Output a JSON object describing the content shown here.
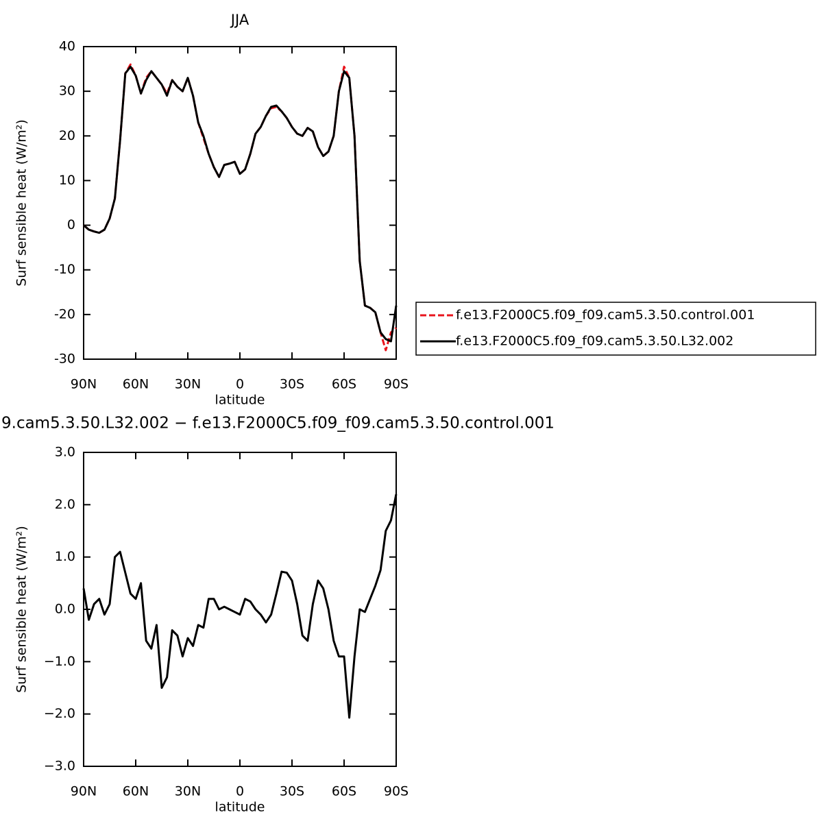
{
  "chart_data": [
    {
      "type": "line",
      "title": "JJA",
      "xlabel": "latitude",
      "ylabel": "Surf sensible heat (W/m²)",
      "x": [
        90,
        87,
        84,
        81,
        78,
        75,
        72,
        69,
        66,
        63,
        60,
        57,
        54,
        51,
        48,
        45,
        42,
        39,
        36,
        33,
        30,
        27,
        24,
        21,
        18,
        15,
        12,
        9,
        6,
        3,
        0,
        -3,
        -6,
        -9,
        -12,
        -15,
        -18,
        -21,
        -24,
        -27,
        -30,
        -33,
        -36,
        -39,
        -42,
        -45,
        -48,
        -51,
        -54,
        -57,
        -60,
        -63,
        -66,
        -69,
        -72,
        -75,
        -78,
        -81,
        -84,
        -87,
        -90
      ],
      "series": [
        {
          "name": "f.e13.F2000C5.f09_f09.cam5.3.50.control.001",
          "color": "#e8141c",
          "dash": true,
          "values": [
            0,
            -1,
            -1.4,
            -1.7,
            -1,
            1.5,
            6,
            19,
            34,
            36,
            33.5,
            29.5,
            33,
            34.5,
            33,
            31.5,
            29.5,
            32.5,
            31,
            30,
            33,
            29,
            23,
            19.5,
            16,
            13,
            10.8,
            13.5,
            13.8,
            14.2,
            11.5,
            12.5,
            16,
            20.5,
            22,
            24.5,
            26.2,
            26.5,
            25.5,
            24,
            22,
            20.5,
            20,
            21.8,
            21,
            17.5,
            15.5,
            16.5,
            20,
            30,
            35.5,
            33,
            20,
            -8,
            -18,
            -18.5,
            -19.5,
            -24,
            -28,
            -24,
            -23
          ]
        },
        {
          "name": "f.e13.F2000C5.f09_f09.cam5.3.50.L32.002",
          "color": "#000000",
          "dash": false,
          "values": [
            0,
            -1,
            -1.4,
            -1.7,
            -1,
            1.5,
            6,
            19,
            34,
            35.5,
            33.5,
            29.5,
            32.5,
            34.5,
            33,
            31.5,
            29,
            32.5,
            31,
            30,
            33,
            29,
            23,
            20,
            16,
            13,
            10.8,
            13.5,
            13.8,
            14.2,
            11.5,
            12.5,
            16,
            20.5,
            22,
            24.5,
            26.5,
            26.8,
            25.5,
            24,
            22,
            20.5,
            20,
            21.8,
            21,
            17.5,
            15.5,
            16.5,
            20,
            30,
            34.5,
            33,
            20,
            -8,
            -18,
            -18.5,
            -19.5,
            -24,
            -25.5,
            -26,
            -18
          ]
        }
      ],
      "xlim": [
        90,
        -90
      ],
      "xticks": [
        {
          "value": 90,
          "label": "90N"
        },
        {
          "value": 60,
          "label": "60N"
        },
        {
          "value": 30,
          "label": "30N"
        },
        0,
        {
          "value": -30,
          "label": "30S"
        },
        {
          "value": -60,
          "label": "60S"
        },
        {
          "value": -90,
          "label": "90S"
        }
      ],
      "ylim": [
        -30,
        40
      ],
      "yticks": [
        -30,
        -20,
        -10,
        0,
        10,
        20,
        30,
        40
      ],
      "legend": "right"
    },
    {
      "type": "line",
      "title": "9.cam5.3.50.L32.002 − f.e13.F2000C5.f09_f09.cam5.3.50.control.001",
      "xlabel": "latitude",
      "ylabel": "Surf sensible heat (W/m²)",
      "x": [
        90,
        87,
        84,
        81,
        78,
        75,
        72,
        69,
        66,
        63,
        60,
        57,
        54,
        51,
        48,
        45,
        42,
        39,
        36,
        33,
        30,
        27,
        24,
        21,
        18,
        15,
        12,
        9,
        6,
        3,
        0,
        -3,
        -6,
        -9,
        -12,
        -15,
        -18,
        -21,
        -24,
        -27,
        -30,
        -33,
        -36,
        -39,
        -42,
        -45,
        -48,
        -51,
        -54,
        -57,
        -60,
        -63,
        -66,
        -69,
        -72,
        -75,
        -78,
        -81,
        -84,
        -87,
        -90
      ],
      "series": [
        {
          "color": "#000000",
          "dash": false,
          "values": [
            0.4,
            -0.2,
            0.1,
            0.2,
            -0.1,
            0.1,
            1.0,
            1.1,
            0.7,
            0.3,
            0.2,
            0.5,
            -0.6,
            -0.75,
            -0.3,
            -1.5,
            -1.3,
            -0.4,
            -0.5,
            -0.9,
            -0.55,
            -0.7,
            -0.3,
            -0.35,
            0.2,
            0.2,
            0,
            0.05,
            0,
            -0.05,
            -0.1,
            0.2,
            0.15,
            0,
            -0.1,
            -0.25,
            -0.1,
            0.3,
            0.72,
            0.7,
            0.55,
            0.1,
            -0.5,
            -0.6,
            0.1,
            0.55,
            0.4,
            0,
            -0.6,
            -0.9,
            -0.9,
            -2.07,
            -0.9,
            0,
            -0.05,
            0.2,
            0.45,
            0.75,
            1.5,
            1.7,
            2.2
          ]
        }
      ],
      "xlim": [
        90,
        -90
      ],
      "xticks": [
        {
          "value": 90,
          "label": "90N"
        },
        {
          "value": 60,
          "label": "60N"
        },
        {
          "value": 30,
          "label": "30N"
        },
        0,
        {
          "value": -30,
          "label": "30S"
        },
        {
          "value": -60,
          "label": "60S"
        },
        {
          "value": -90,
          "label": "90S"
        }
      ],
      "ylim": [
        -3,
        3
      ],
      "yticks": [
        {
          "value": -3,
          "label": "−3.0"
        },
        {
          "value": -2,
          "label": "−2.0"
        },
        {
          "value": -1,
          "label": "−1.0"
        },
        {
          "value": 0,
          "label": "0.0"
        },
        {
          "value": 1,
          "label": "1.0"
        },
        {
          "value": 2,
          "label": "2.0"
        },
        {
          "value": 3,
          "label": "3.0"
        }
      ]
    }
  ]
}
